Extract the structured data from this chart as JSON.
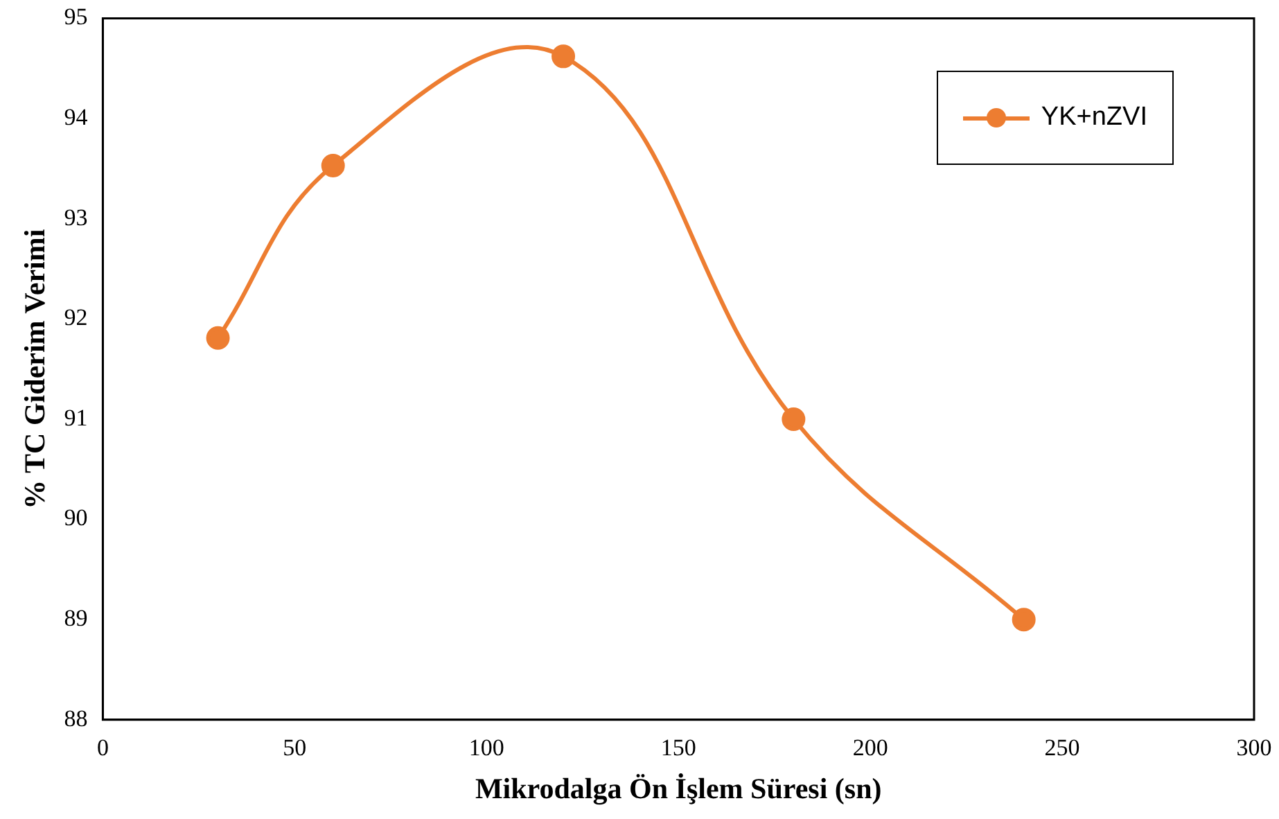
{
  "chart_data": {
    "type": "line",
    "xlabel": "Mikrodalga Ön İşlem Süresi (sn)",
    "ylabel": "% TC Giderim Verimi",
    "x": [
      30,
      60,
      120,
      180,
      240
    ],
    "series": [
      {
        "name": "YK+nZVI",
        "color": "#ed7d31",
        "values": [
          91.81,
          93.53,
          94.62,
          91.0,
          89.0
        ]
      }
    ],
    "xlim": [
      0,
      300
    ],
    "xticks": [
      0,
      50,
      100,
      150,
      200,
      250,
      300
    ],
    "ylim": [
      88,
      95
    ],
    "yticks": [
      88,
      89,
      90,
      91,
      92,
      93,
      94,
      95
    ],
    "grid": false,
    "legend": "top right",
    "marker": "circle",
    "line_style": "solid"
  }
}
